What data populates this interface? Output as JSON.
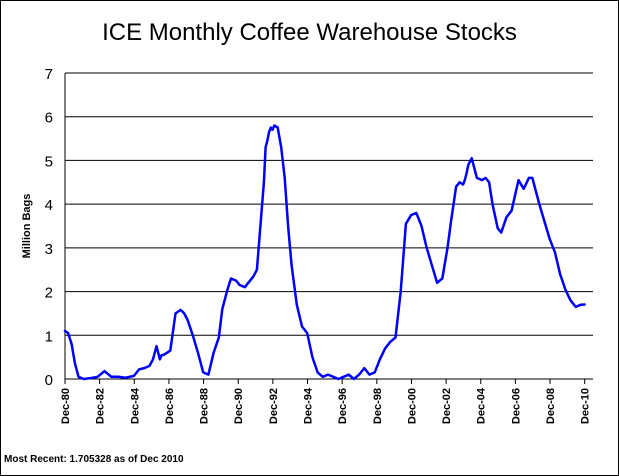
{
  "chart_data": {
    "type": "line",
    "title": "ICE Monthly Coffee Warehouse Stocks",
    "xlabel": "",
    "ylabel": "Million Bags",
    "footnote": "Most Recent: 1.705328 as of Dec 2010",
    "ylim": [
      0,
      7
    ],
    "yticks": [
      "0",
      "1",
      "2",
      "3",
      "4",
      "5",
      "6",
      "7"
    ],
    "xlim": [
      1980.92,
      2011.4
    ],
    "xticks": [
      {
        "x": 1980.92,
        "label": "Dec-80"
      },
      {
        "x": 1982.92,
        "label": "Dec-82"
      },
      {
        "x": 1984.92,
        "label": "Dec-84"
      },
      {
        "x": 1986.92,
        "label": "Dec-86"
      },
      {
        "x": 1988.92,
        "label": "Dec-88"
      },
      {
        "x": 1990.92,
        "label": "Dec-90"
      },
      {
        "x": 1992.92,
        "label": "Dec-92"
      },
      {
        "x": 1994.92,
        "label": "Dec-94"
      },
      {
        "x": 1996.92,
        "label": "Dec-96"
      },
      {
        "x": 1998.92,
        "label": "Dec-98"
      },
      {
        "x": 2000.92,
        "label": "Dec-00"
      },
      {
        "x": 2002.92,
        "label": "Dec-02"
      },
      {
        "x": 2004.92,
        "label": "Dec-04"
      },
      {
        "x": 2006.92,
        "label": "Dec-06"
      },
      {
        "x": 2008.92,
        "label": "Dec-08"
      },
      {
        "x": 2010.92,
        "label": "Dec-10"
      }
    ],
    "grid": "horizontal",
    "legend": "none",
    "series": [
      {
        "color": "#0000ff",
        "x": [
          1980.92,
          1981.1,
          1981.3,
          1981.5,
          1981.7,
          1982.0,
          1982.4,
          1982.8,
          1983.2,
          1983.6,
          1984.0,
          1984.4,
          1984.9,
          1985.2,
          1985.5,
          1985.8,
          1986.0,
          1986.2,
          1986.4,
          1986.5,
          1986.6,
          1986.8,
          1987.0,
          1987.3,
          1987.6,
          1987.8,
          1988.0,
          1988.3,
          1988.6,
          1988.9,
          1989.2,
          1989.5,
          1989.8,
          1990.0,
          1990.3,
          1990.5,
          1990.8,
          1991.0,
          1991.3,
          1991.5,
          1991.8,
          1992.0,
          1992.2,
          1992.4,
          1992.5,
          1992.6,
          1992.7,
          1992.8,
          1992.9,
          1993.0,
          1993.2,
          1993.4,
          1993.6,
          1993.8,
          1994.0,
          1994.3,
          1994.6,
          1994.9,
          1995.2,
          1995.5,
          1995.8,
          1996.1,
          1996.4,
          1996.7,
          1997.0,
          1997.3,
          1997.6,
          1997.9,
          1998.2,
          1998.5,
          1998.8,
          1999.1,
          1999.4,
          1999.7,
          2000.0,
          2000.3,
          2000.6,
          2000.9,
          2001.2,
          2001.5,
          2001.8,
          2002.1,
          2002.4,
          2002.7,
          2003.0,
          2003.2,
          2003.5,
          2003.7,
          2003.9,
          2004.0,
          2004.1,
          2004.2,
          2004.4,
          2004.7,
          2005.0,
          2005.2,
          2005.4,
          2005.6,
          2005.9,
          2006.1,
          2006.4,
          2006.7,
          2006.9,
          2007.1,
          2007.4,
          2007.7,
          2007.9,
          2008.1,
          2008.3,
          2008.6,
          2008.9,
          2009.2,
          2009.5,
          2009.8,
          2010.1,
          2010.4,
          2010.7,
          2010.92
        ],
        "values": [
          1.1,
          1.05,
          0.8,
          0.35,
          0.05,
          0.0,
          0.02,
          0.05,
          0.18,
          0.05,
          0.05,
          0.03,
          0.07,
          0.22,
          0.25,
          0.3,
          0.45,
          0.75,
          0.45,
          0.55,
          0.55,
          0.6,
          0.65,
          1.5,
          1.58,
          1.5,
          1.35,
          1.0,
          0.6,
          0.15,
          0.1,
          0.6,
          0.95,
          1.6,
          2.05,
          2.3,
          2.25,
          2.15,
          2.1,
          2.2,
          2.35,
          2.5,
          3.5,
          4.5,
          5.3,
          5.45,
          5.65,
          5.75,
          5.7,
          5.8,
          5.75,
          5.3,
          4.6,
          3.5,
          2.6,
          1.7,
          1.2,
          1.05,
          0.5,
          0.15,
          0.05,
          0.1,
          0.05,
          0.0,
          0.05,
          0.1,
          0.0,
          0.1,
          0.25,
          0.1,
          0.15,
          0.45,
          0.7,
          0.85,
          0.95,
          2.0,
          3.55,
          3.75,
          3.8,
          3.5,
          3.0,
          2.6,
          2.2,
          2.3,
          3.0,
          3.6,
          4.4,
          4.5,
          4.45,
          4.55,
          4.7,
          4.9,
          5.05,
          4.6,
          4.55,
          4.6,
          4.5,
          4.0,
          3.45,
          3.35,
          3.7,
          3.85,
          4.2,
          4.55,
          4.35,
          4.6,
          4.6,
          4.3,
          4.0,
          3.6,
          3.2,
          2.9,
          2.4,
          2.05,
          1.8,
          1.65,
          1.7,
          1.705328
        ]
      }
    ]
  }
}
